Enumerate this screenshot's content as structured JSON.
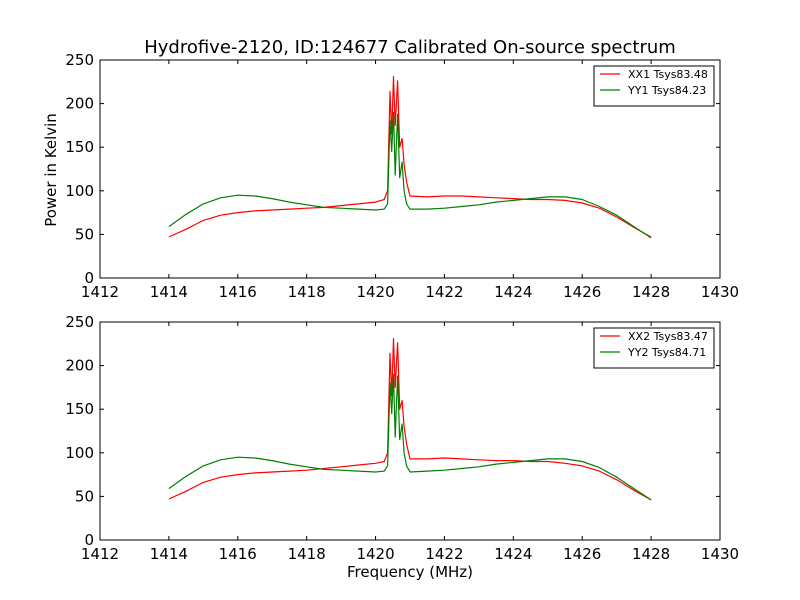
{
  "figure": {
    "title": "Hydrofive-2120, ID:124677 Calibrated On-source spectrum",
    "xlabel": "Frequency (MHz)",
    "ylabel": "Power in Kelvin"
  },
  "colors": {
    "red": "#ff0000",
    "green": "#008000"
  },
  "chart_data": [
    {
      "type": "line",
      "title": "Hydrofive-2120, ID:124677 Calibrated On-source spectrum",
      "xlabel": "",
      "ylabel": "Power in Kelvin",
      "xlim": [
        1412,
        1430
      ],
      "ylim": [
        0,
        250
      ],
      "xticks": [
        1412,
        1414,
        1416,
        1418,
        1420,
        1422,
        1424,
        1426,
        1428,
        1430
      ],
      "yticks": [
        0,
        50,
        100,
        150,
        200,
        250
      ],
      "grid": false,
      "legend": "top-right",
      "series": [
        {
          "name": "XX1 Tsys83.48",
          "color": "#ff0000",
          "points": [
            [
              1414.0,
              47
            ],
            [
              1414.5,
              56
            ],
            [
              1415.0,
              66
            ],
            [
              1415.5,
              72
            ],
            [
              1416.0,
              75
            ],
            [
              1416.5,
              77
            ],
            [
              1417.0,
              78
            ],
            [
              1417.5,
              79
            ],
            [
              1418.0,
              80
            ],
            [
              1418.5,
              81
            ],
            [
              1419.0,
              83
            ],
            [
              1419.5,
              85
            ],
            [
              1420.0,
              87
            ],
            [
              1420.25,
              90
            ],
            [
              1420.35,
              100
            ],
            [
              1420.42,
              214
            ],
            [
              1420.47,
              165
            ],
            [
              1420.52,
              231
            ],
            [
              1420.57,
              175
            ],
            [
              1420.64,
              226
            ],
            [
              1420.7,
              150
            ],
            [
              1420.77,
              160
            ],
            [
              1420.83,
              130
            ],
            [
              1420.9,
              110
            ],
            [
              1421.0,
              94
            ],
            [
              1421.5,
              93
            ],
            [
              1422.0,
              94
            ],
            [
              1422.5,
              94
            ],
            [
              1423.0,
              93
            ],
            [
              1423.5,
              92
            ],
            [
              1424.0,
              91
            ],
            [
              1424.5,
              90
            ],
            [
              1425.0,
              90
            ],
            [
              1425.5,
              89
            ],
            [
              1426.0,
              86
            ],
            [
              1426.5,
              80
            ],
            [
              1427.0,
              70
            ],
            [
              1427.5,
              58
            ],
            [
              1428.0,
              47
            ]
          ]
        },
        {
          "name": "YY1 Tsys84.23",
          "color": "#008000",
          "points": [
            [
              1414.0,
              59
            ],
            [
              1414.5,
              73
            ],
            [
              1415.0,
              85
            ],
            [
              1415.5,
              92
            ],
            [
              1416.0,
              95
            ],
            [
              1416.5,
              94
            ],
            [
              1417.0,
              91
            ],
            [
              1417.5,
              87
            ],
            [
              1418.0,
              84
            ],
            [
              1418.5,
              81
            ],
            [
              1419.0,
              80
            ],
            [
              1419.5,
              79
            ],
            [
              1420.0,
              78
            ],
            [
              1420.25,
              79
            ],
            [
              1420.35,
              85
            ],
            [
              1420.42,
              180
            ],
            [
              1420.47,
              145
            ],
            [
              1420.52,
              190
            ],
            [
              1420.57,
              118
            ],
            [
              1420.64,
              188
            ],
            [
              1420.7,
              115
            ],
            [
              1420.77,
              133
            ],
            [
              1420.83,
              100
            ],
            [
              1420.9,
              85
            ],
            [
              1421.0,
              79
            ],
            [
              1421.5,
              79
            ],
            [
              1422.0,
              80
            ],
            [
              1422.5,
              82
            ],
            [
              1423.0,
              84
            ],
            [
              1423.5,
              87
            ],
            [
              1424.0,
              89
            ],
            [
              1424.5,
              91
            ],
            [
              1425.0,
              93
            ],
            [
              1425.5,
              93
            ],
            [
              1426.0,
              90
            ],
            [
              1426.5,
              82
            ],
            [
              1427.0,
              72
            ],
            [
              1427.5,
              59
            ],
            [
              1428.0,
              46
            ]
          ]
        }
      ]
    },
    {
      "type": "line",
      "title": "",
      "xlabel": "Frequency (MHz)",
      "ylabel": "",
      "xlim": [
        1412,
        1430
      ],
      "ylim": [
        0,
        250
      ],
      "xticks": [
        1412,
        1414,
        1416,
        1418,
        1420,
        1422,
        1424,
        1426,
        1428,
        1430
      ],
      "yticks": [
        0,
        50,
        100,
        150,
        200,
        250
      ],
      "grid": false,
      "legend": "top-right",
      "series": [
        {
          "name": "XX2 Tsys83.47",
          "color": "#ff0000",
          "points": [
            [
              1414.0,
              47
            ],
            [
              1414.5,
              56
            ],
            [
              1415.0,
              66
            ],
            [
              1415.5,
              72
            ],
            [
              1416.0,
              75
            ],
            [
              1416.5,
              77
            ],
            [
              1417.0,
              78
            ],
            [
              1417.5,
              79
            ],
            [
              1418.0,
              80
            ],
            [
              1418.5,
              82
            ],
            [
              1419.0,
              84
            ],
            [
              1419.5,
              86
            ],
            [
              1420.0,
              88
            ],
            [
              1420.25,
              90
            ],
            [
              1420.35,
              100
            ],
            [
              1420.42,
              214
            ],
            [
              1420.47,
              165
            ],
            [
              1420.52,
              231
            ],
            [
              1420.57,
              175
            ],
            [
              1420.64,
              226
            ],
            [
              1420.7,
              150
            ],
            [
              1420.77,
              160
            ],
            [
              1420.83,
              130
            ],
            [
              1420.9,
              110
            ],
            [
              1421.0,
              93
            ],
            [
              1421.5,
              93
            ],
            [
              1422.0,
              94
            ],
            [
              1422.5,
              93
            ],
            [
              1423.0,
              92
            ],
            [
              1423.5,
              91
            ],
            [
              1424.0,
              91
            ],
            [
              1424.5,
              90
            ],
            [
              1425.0,
              90
            ],
            [
              1425.5,
              88
            ],
            [
              1426.0,
              85
            ],
            [
              1426.5,
              79
            ],
            [
              1427.0,
              69
            ],
            [
              1427.5,
              57
            ],
            [
              1428.0,
              46
            ]
          ]
        },
        {
          "name": "YY2 Tsys84.71",
          "color": "#008000",
          "points": [
            [
              1414.0,
              59
            ],
            [
              1414.5,
              73
            ],
            [
              1415.0,
              85
            ],
            [
              1415.5,
              92
            ],
            [
              1416.0,
              95
            ],
            [
              1416.5,
              94
            ],
            [
              1417.0,
              91
            ],
            [
              1417.5,
              87
            ],
            [
              1418.0,
              84
            ],
            [
              1418.5,
              81
            ],
            [
              1419.0,
              80
            ],
            [
              1419.5,
              79
            ],
            [
              1420.0,
              78
            ],
            [
              1420.25,
              79
            ],
            [
              1420.35,
              85
            ],
            [
              1420.42,
              180
            ],
            [
              1420.47,
              145
            ],
            [
              1420.52,
              190
            ],
            [
              1420.57,
              118
            ],
            [
              1420.64,
              188
            ],
            [
              1420.7,
              115
            ],
            [
              1420.77,
              133
            ],
            [
              1420.83,
              100
            ],
            [
              1420.9,
              85
            ],
            [
              1421.0,
              78
            ],
            [
              1421.5,
              79
            ],
            [
              1422.0,
              80
            ],
            [
              1422.5,
              82
            ],
            [
              1423.0,
              84
            ],
            [
              1423.5,
              87
            ],
            [
              1424.0,
              89
            ],
            [
              1424.5,
              91
            ],
            [
              1425.0,
              93
            ],
            [
              1425.5,
              93
            ],
            [
              1426.0,
              90
            ],
            [
              1426.5,
              83
            ],
            [
              1427.0,
              72
            ],
            [
              1427.5,
              59
            ],
            [
              1428.0,
              46
            ]
          ]
        }
      ]
    }
  ]
}
